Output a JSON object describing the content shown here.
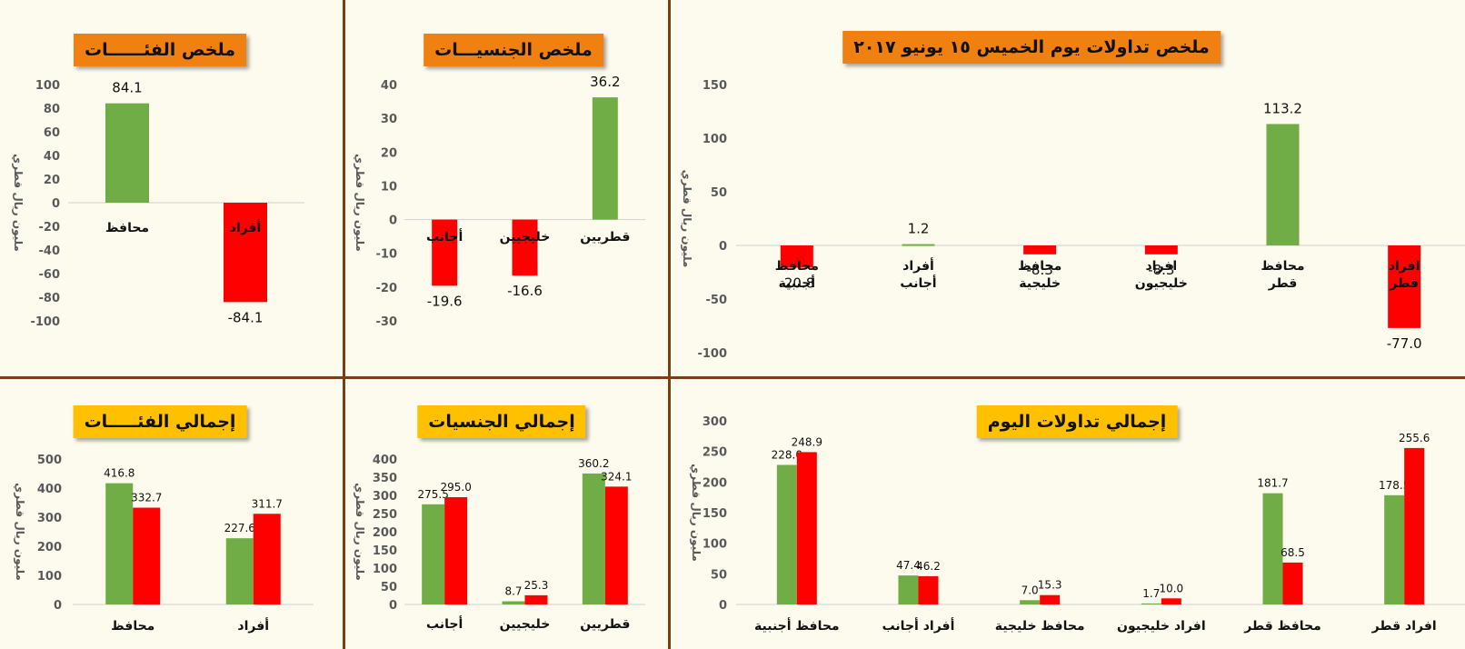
{
  "ylabel": "مليون ريال قطري",
  "colors": {
    "green": "#70ad47",
    "red": "#ff0000",
    "axis": "#d0d0d0"
  },
  "chart_data": [
    {
      "type": "bar",
      "title": "ملخص تداولات يوم الخميس ١٥ يونيو ٢٠١٧",
      "ylabel": "مليون ريال قطري",
      "ylim": [
        -100,
        150
      ],
      "yticks": [
        -100,
        -50,
        0,
        50,
        100,
        150
      ],
      "categories": [
        "افراد قطر",
        "محافظ قطر",
        "افراد خليجيون",
        "محافظ خليجية",
        "أفراد أجانب",
        "محافظ أجنبية"
      ],
      "values": [
        -77.0,
        113.2,
        -8.3,
        -8.3,
        1.2,
        -20.8
      ],
      "value_labels": [
        "-77.0",
        "113.2",
        "-8.3",
        "-8.3",
        "1.2",
        "-20.8"
      ]
    },
    {
      "type": "bar",
      "title": "ملخص الجنسيـــات",
      "ylabel": "مليون ريال قطري",
      "ylim": [
        -30,
        40
      ],
      "yticks": [
        -30,
        -20,
        -10,
        0,
        10,
        20,
        30,
        40
      ],
      "categories": [
        "قطريين",
        "خليجيين",
        "أجانب"
      ],
      "values": [
        36.2,
        -16.6,
        -19.6
      ],
      "value_labels": [
        "36.2",
        "-16.6",
        "-19.6"
      ]
    },
    {
      "type": "bar",
      "title": "ملخص الفئــــــات",
      "ylabel": "مليون ريال قطري",
      "ylim": [
        -100,
        100
      ],
      "yticks": [
        -100,
        -80,
        -60,
        -40,
        -20,
        0,
        20,
        40,
        60,
        80,
        100
      ],
      "categories": [
        "أفراد",
        "محافظ"
      ],
      "values": [
        -84.1,
        84.1
      ],
      "value_labels": [
        "-84.1",
        "84.1"
      ]
    },
    {
      "type": "bar",
      "title": "إجمالي تداولات اليوم",
      "ylabel": "مليون ريال قطري",
      "ylim": [
        0,
        300
      ],
      "yticks": [
        0,
        50,
        100,
        150,
        200,
        250,
        300
      ],
      "categories": [
        "افراد قطر",
        "محافظ قطر",
        "افراد خليجيون",
        "محافظ خليجية",
        "أفراد أجانب",
        "محافظ أجنبية"
      ],
      "series": [
        {
          "values": [
            178.5,
            181.7,
            1.7,
            7.0,
            47.4,
            228.0
          ],
          "labels": [
            "178.5",
            "181.7",
            "1.7",
            "7.0",
            "47.4",
            "228.0"
          ]
        },
        {
          "values": [
            255.6,
            68.5,
            10.0,
            15.3,
            46.2,
            248.9
          ],
          "labels": [
            "255.6",
            "68.5",
            "10.0",
            "15.3",
            "46.2",
            "248.9"
          ]
        }
      ]
    },
    {
      "type": "bar",
      "title": "إجمالي الجنسيات",
      "ylabel": "مليون ريال قطري",
      "ylim": [
        0,
        400
      ],
      "yticks": [
        0,
        50,
        100,
        150,
        200,
        250,
        300,
        350,
        400
      ],
      "categories": [
        "قطريين",
        "خليجيين",
        "أجانب"
      ],
      "series": [
        {
          "values": [
            360.2,
            8.7,
            275.5
          ],
          "labels": [
            "360.2",
            "8.7",
            "275.5"
          ]
        },
        {
          "values": [
            324.1,
            25.3,
            295.0
          ],
          "labels": [
            "324.1",
            "25.3",
            "295.0"
          ]
        }
      ]
    },
    {
      "type": "bar",
      "title": "إجمالي الفئـــــات",
      "ylabel": "مليون ريال قطري",
      "ylim": [
        0,
        500
      ],
      "yticks": [
        0,
        100,
        200,
        300,
        400,
        500
      ],
      "categories": [
        "أفراد",
        "محافظ"
      ],
      "series": [
        {
          "values": [
            227.6,
            416.8
          ],
          "labels": [
            "227.6",
            "416.8"
          ]
        },
        {
          "values": [
            311.7,
            332.7
          ],
          "labels": [
            "311.7",
            "332.7"
          ]
        }
      ]
    }
  ]
}
